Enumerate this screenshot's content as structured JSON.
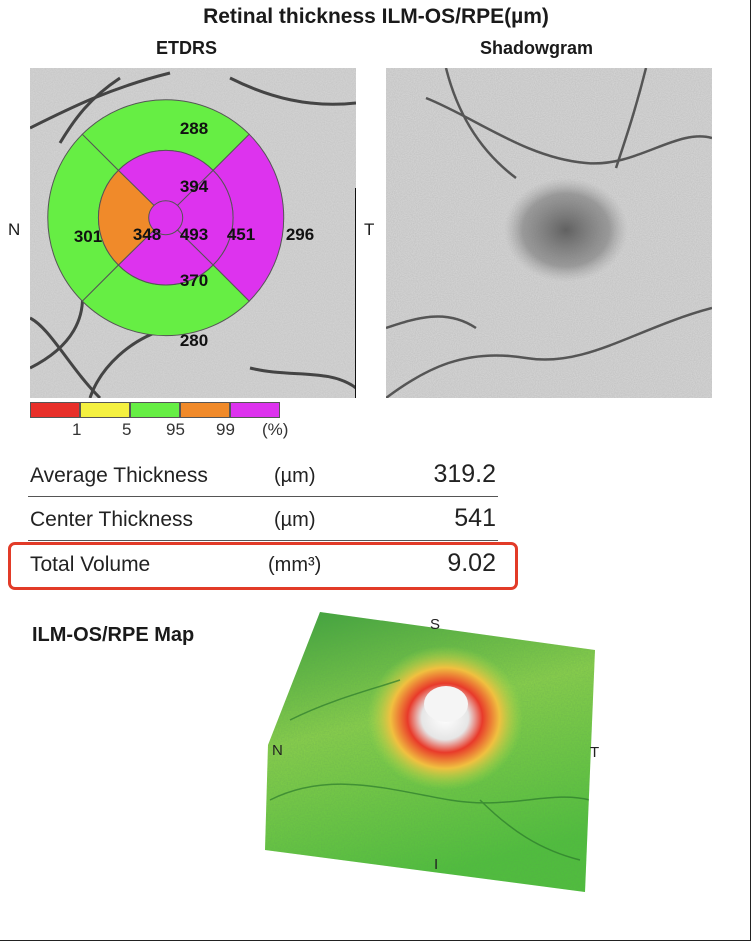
{
  "title": "Retinal thickness ILM-OS/RPE(µm)",
  "etdrs": {
    "subtitle": "ETDRS",
    "label_n": "N",
    "label_t": "T",
    "center": "493",
    "inner_superior": "394",
    "inner_nasal": "348",
    "inner_temporal": "451",
    "inner_inferior": "370",
    "outer_superior": "288",
    "outer_nasal": "301",
    "outer_temporal": "296",
    "outer_inferior": "280",
    "colors": {
      "green": "#66ee44",
      "orange": "#f08a2a",
      "magenta": "#dd33ee"
    }
  },
  "shadowgram": {
    "subtitle": "Shadowgram"
  },
  "scale": {
    "colors": [
      "#e8302a",
      "#f4f040",
      "#66ee44",
      "#f08a2a",
      "#dd33ee"
    ],
    "labels": [
      "1",
      "5",
      "95",
      "99",
      "(%)"
    ]
  },
  "metrics": [
    {
      "label": "Average Thickness",
      "unit": "(µm)",
      "value": "319.2"
    },
    {
      "label": "Center Thickness",
      "unit": "(µm)",
      "value": "541"
    },
    {
      "label": "Total Volume",
      "unit": "(mm³)",
      "value": "9.02"
    }
  ],
  "map": {
    "title": "ILM-OS/RPE Map",
    "label_s": "S",
    "label_n": "N",
    "label_t": "T",
    "label_i": "I"
  }
}
